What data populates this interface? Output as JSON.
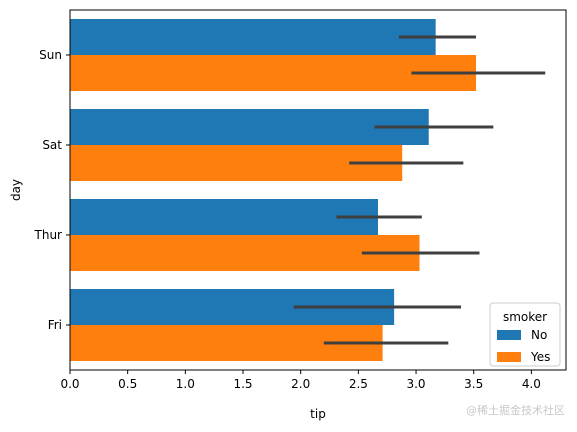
{
  "chart_data": {
    "type": "bar",
    "orientation": "horizontal",
    "xlabel": "tip",
    "ylabel": "day",
    "xlim": [
      0,
      4.3
    ],
    "xticks": [
      "0.0",
      "0.5",
      "1.0",
      "1.5",
      "2.0",
      "2.5",
      "3.0",
      "3.5",
      "4.0"
    ],
    "categories": [
      "Sun",
      "Sat",
      "Thur",
      "Fri"
    ],
    "series": [
      {
        "name": "No",
        "color": "#1f77b4",
        "values": [
          3.17,
          3.11,
          2.67,
          2.81
        ],
        "ci_low": [
          2.85,
          2.64,
          2.31,
          1.94
        ],
        "ci_high": [
          3.52,
          3.67,
          3.05,
          3.39
        ]
      },
      {
        "name": "Yes",
        "color": "#ff7f0e",
        "values": [
          3.52,
          2.88,
          3.03,
          2.71
        ],
        "ci_low": [
          2.96,
          2.42,
          2.53,
          2.2
        ],
        "ci_high": [
          4.12,
          3.41,
          3.55,
          3.28
        ]
      }
    ],
    "legend": {
      "title": "smoker",
      "placement": "lower-right"
    },
    "grid": false
  },
  "watermark": "@稀土掘金技术社区"
}
